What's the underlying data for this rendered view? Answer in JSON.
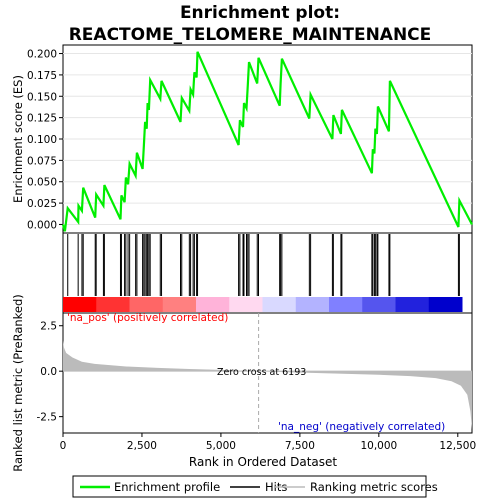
{
  "chart_data": {
    "type": "line",
    "title_line1": "Enrichment plot:",
    "title_line2": "REACTOME_TELOMERE_MAINTENANCE",
    "es_panel": {
      "ylabel": "Enrichment score (ES)",
      "ylim": [
        -0.01,
        0.21
      ],
      "yticks": [
        0.0,
        0.025,
        0.05,
        0.075,
        0.1,
        0.125,
        0.15,
        0.175,
        0.2
      ],
      "ytick_labels": [
        "0.000",
        "0.025",
        "0.050",
        "0.075",
        "0.100",
        "0.125",
        "0.150",
        "0.175",
        "0.200"
      ],
      "line_color": "#00ee00",
      "points": [
        [
          0,
          0.0
        ],
        [
          60,
          -0.008
        ],
        [
          150,
          0.019
        ],
        [
          480,
          0.003
        ],
        [
          490,
          0.022
        ],
        [
          600,
          0.016
        ],
        [
          640,
          0.043
        ],
        [
          1020,
          0.008
        ],
        [
          1050,
          0.035
        ],
        [
          1280,
          0.022
        ],
        [
          1310,
          0.046
        ],
        [
          1820,
          0.006
        ],
        [
          1850,
          0.034
        ],
        [
          1950,
          0.026
        ],
        [
          1990,
          0.055
        ],
        [
          2060,
          0.047
        ],
        [
          2110,
          0.071
        ],
        [
          2300,
          0.057
        ],
        [
          2340,
          0.084
        ],
        [
          2520,
          0.065
        ],
        [
          2560,
          0.093
        ],
        [
          2600,
          0.12
        ],
        [
          2650,
          0.112
        ],
        [
          2680,
          0.142
        ],
        [
          2720,
          0.134
        ],
        [
          2760,
          0.169
        ],
        [
          3080,
          0.147
        ],
        [
          3120,
          0.168
        ],
        [
          3720,
          0.12
        ],
        [
          3760,
          0.148
        ],
        [
          4000,
          0.133
        ],
        [
          4040,
          0.158
        ],
        [
          4120,
          0.152
        ],
        [
          4160,
          0.178
        ],
        [
          4230,
          0.172
        ],
        [
          4260,
          0.202
        ],
        [
          5560,
          0.093
        ],
        [
          5600,
          0.122
        ],
        [
          5700,
          0.114
        ],
        [
          5730,
          0.142
        ],
        [
          5810,
          0.136
        ],
        [
          5850,
          0.163
        ],
        [
          5890,
          0.19
        ],
        [
          6150,
          0.165
        ],
        [
          6190,
          0.195
        ],
        [
          6860,
          0.139
        ],
        [
          6890,
          0.165
        ],
        [
          6930,
          0.194
        ],
        [
          7800,
          0.124
        ],
        [
          7840,
          0.152
        ],
        [
          8530,
          0.1
        ],
        [
          8560,
          0.128
        ],
        [
          8800,
          0.106
        ],
        [
          8830,
          0.134
        ],
        [
          9780,
          0.06
        ],
        [
          9810,
          0.088
        ],
        [
          9860,
          0.083
        ],
        [
          9890,
          0.112
        ],
        [
          9940,
          0.106
        ],
        [
          9970,
          0.138
        ],
        [
          10320,
          0.109
        ],
        [
          10350,
          0.168
        ],
        [
          12520,
          -0.003
        ],
        [
          12550,
          0.028
        ],
        [
          12950,
          0.0
        ]
      ]
    },
    "hits_panel": {
      "hit_positions": [
        150,
        480,
        600,
        640,
        1020,
        1050,
        1280,
        1310,
        1820,
        1850,
        1950,
        1990,
        2060,
        2110,
        2300,
        2340,
        2520,
        2560,
        2600,
        2650,
        2680,
        2720,
        2760,
        3080,
        3120,
        3720,
        3760,
        4000,
        4040,
        4120,
        4160,
        4230,
        4260,
        5560,
        5600,
        5700,
        5730,
        5810,
        5850,
        5890,
        6150,
        6190,
        6860,
        6890,
        6930,
        7800,
        7840,
        8530,
        8560,
        8800,
        8830,
        9780,
        9810,
        9860,
        9890,
        9940,
        9970,
        10320,
        10350,
        12520,
        12550
      ],
      "heatmap_colors": [
        "#ff0000",
        "#ff3333",
        "#ff6666",
        "#ff8080",
        "#ffb3d9",
        "#ffd9f0",
        "#d9d9ff",
        "#b3b3ff",
        "#8080ff",
        "#5555ee",
        "#2222dd",
        "#0000cc"
      ]
    },
    "rank_panel": {
      "ylabel": "Ranked list metric (PreRanked)",
      "xlabel": "Rank in Ordered Dataset",
      "ylim": [
        -3.4,
        3.2
      ],
      "yticks": [
        -2.5,
        0.0,
        2.5
      ],
      "ytick_labels": [
        "-2.5",
        "0.0",
        "2.5"
      ],
      "xlim": [
        0,
        12950
      ],
      "xticks": [
        0,
        2500,
        5000,
        7500,
        10000,
        12500
      ],
      "xtick_labels": [
        "0",
        "2,500",
        "5,000",
        "7,500",
        "10,000",
        "12,500"
      ],
      "fill_color": "#bbbbbb",
      "metric_curve": [
        [
          0,
          1.7
        ],
        [
          30,
          1.3
        ],
        [
          100,
          1.0
        ],
        [
          300,
          0.75
        ],
        [
          600,
          0.52
        ],
        [
          1000,
          0.4
        ],
        [
          2000,
          0.26
        ],
        [
          3000,
          0.18
        ],
        [
          4000,
          0.12
        ],
        [
          5000,
          0.07
        ],
        [
          6193,
          0.0
        ],
        [
          7000,
          -0.05
        ],
        [
          8000,
          -0.1
        ],
        [
          9000,
          -0.15
        ],
        [
          10000,
          -0.2
        ],
        [
          11000,
          -0.27
        ],
        [
          11800,
          -0.38
        ],
        [
          12300,
          -0.55
        ],
        [
          12600,
          -0.8
        ],
        [
          12800,
          -1.3
        ],
        [
          12900,
          -2.2
        ],
        [
          12950,
          -3.2
        ]
      ],
      "pos_label": "'na_pos' (positively correlated)",
      "neg_label": "'na_neg' (negatively correlated)",
      "zero_cross_label": "Zero cross at 6193",
      "zero_cross": 6193
    },
    "legend": [
      {
        "label": "Enrichment profile",
        "color": "#00ee00"
      },
      {
        "label": "Hits",
        "color": "#000000"
      },
      {
        "label": "Ranking metric scores",
        "color": "#bbbbbb"
      }
    ]
  }
}
